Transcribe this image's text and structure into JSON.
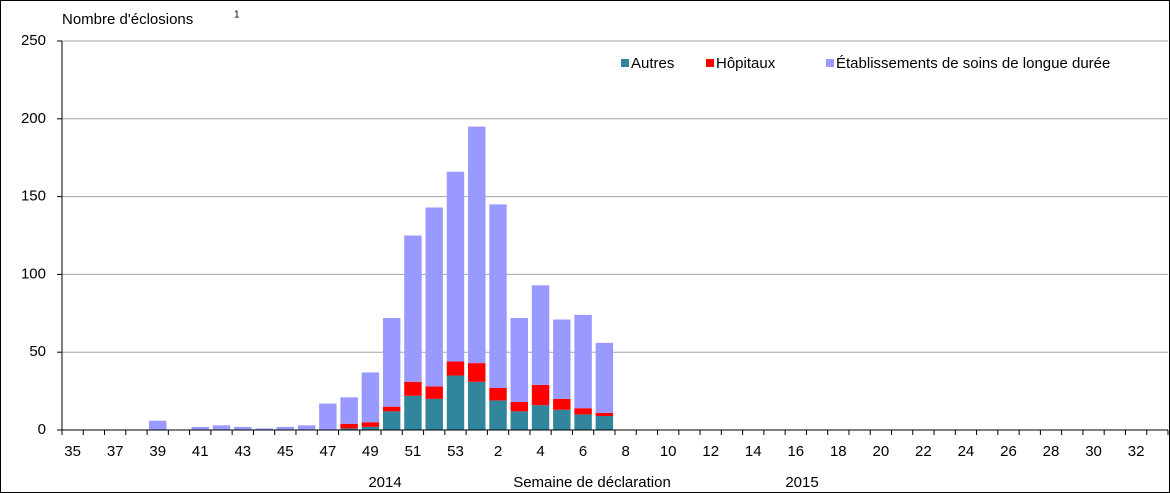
{
  "chart_data": {
    "type": "stacked_bar",
    "y_label": "Nombre d'éclosions",
    "y_label_note": "1",
    "x_label": "Semaine de déclaration",
    "year_labels": [
      "2014",
      "2015"
    ],
    "categories": [
      "35",
      null,
      "37",
      null,
      "39",
      null,
      "41",
      null,
      "43",
      null,
      "45",
      null,
      "47",
      null,
      "49",
      null,
      "51",
      null,
      "53",
      null,
      "2",
      null,
      "4",
      null,
      "6",
      null,
      "8",
      null,
      "10",
      null,
      "12",
      null,
      "14",
      null,
      "16",
      null,
      "18",
      null,
      "20",
      null,
      "22",
      null,
      "24",
      null,
      "26",
      null,
      "28",
      null,
      "30",
      null,
      "32",
      null
    ],
    "series": [
      {
        "name": "Autres",
        "color": "#31859c",
        "values": [
          0,
          0,
          0,
          0,
          0,
          0,
          0,
          0,
          0,
          0,
          0,
          0,
          0,
          1,
          2,
          12,
          22,
          20,
          35,
          31,
          19,
          12,
          16,
          13,
          10,
          9,
          0,
          0,
          0,
          0,
          0,
          0,
          0,
          0,
          0,
          0,
          0,
          0,
          0,
          0,
          0,
          0,
          0,
          0,
          0,
          0,
          0,
          0,
          0,
          0,
          0,
          0
        ]
      },
      {
        "name": "Hôpitaux",
        "color": "#ff0000",
        "values": [
          0,
          0,
          0,
          0,
          0,
          0,
          0,
          0,
          0,
          0,
          0,
          0,
          0,
          3,
          3,
          3,
          9,
          8,
          9,
          12,
          8,
          6,
          13,
          7,
          4,
          2,
          0,
          0,
          0,
          0,
          0,
          0,
          0,
          0,
          0,
          0,
          0,
          0,
          0,
          0,
          0,
          0,
          0,
          0,
          0,
          0,
          0,
          0,
          0,
          0,
          0,
          0
        ]
      },
      {
        "name": "Établissements de soins de longue durée",
        "color": "#9999ff",
        "values": [
          0,
          0,
          0,
          0,
          6,
          0,
          2,
          3,
          2,
          1,
          2,
          3,
          17,
          17,
          32,
          57,
          94,
          115,
          122,
          152,
          118,
          54,
          64,
          51,
          60,
          45,
          0,
          0,
          0,
          0,
          0,
          0,
          0,
          0,
          0,
          0,
          0,
          0,
          0,
          0,
          0,
          0,
          0,
          0,
          0,
          0,
          0,
          0,
          0,
          0,
          0,
          0
        ]
      }
    ],
    "ylim": [
      0,
      250
    ],
    "yticks": [
      0,
      50,
      100,
      150,
      200,
      250
    ],
    "grid": true,
    "legend": "top-right"
  }
}
